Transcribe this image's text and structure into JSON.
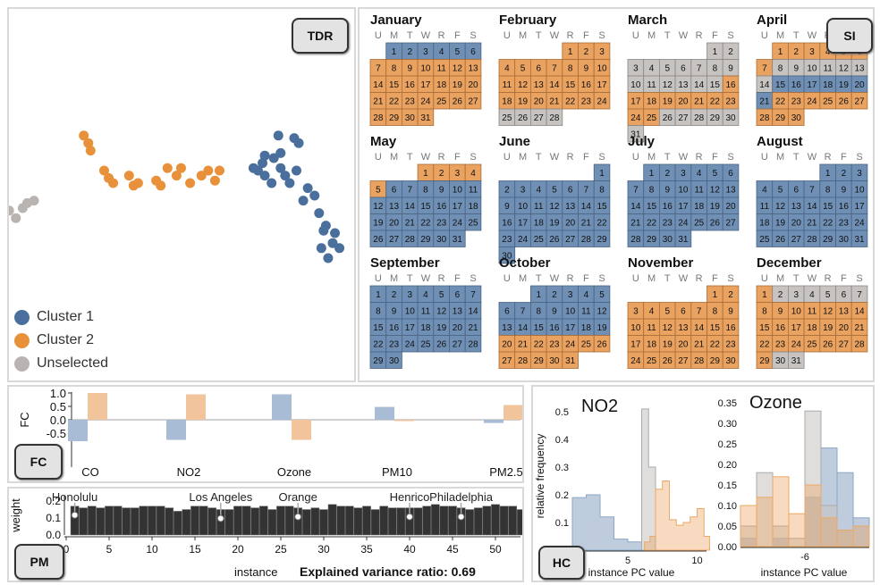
{
  "colors": {
    "cluster1": "#5b7fa9",
    "cluster2": "#e8a063",
    "unselected": "#c8c4c2",
    "bar": "#333333"
  },
  "tdr": {
    "badge": "TDR",
    "legend": [
      {
        "label": "Cluster 1",
        "color": "#4a6f9c"
      },
      {
        "label": "Cluster 2",
        "color": "#e8913a"
      },
      {
        "label": "Unselected",
        "color": "#b9b4b1"
      }
    ]
  },
  "si": {
    "badge": "SI",
    "weekdays": [
      "U",
      "M",
      "T",
      "W",
      "R",
      "F",
      "S"
    ],
    "months": [
      {
        "name": "January",
        "start": 1,
        "days": 31,
        "colors": "BBBBBBOOOOOOOOOOOOOOOOOOOOOOOOO"
      },
      {
        "name": "February",
        "start": 4,
        "days": 28,
        "colors": "OOOOOOOOOOOOOOOOOOOOOOOOGGGG"
      },
      {
        "name": "March",
        "start": 5,
        "days": 31,
        "colors": "GGGGGGGGGGGGGGGOOOOOOOOOOGGGGGG"
      },
      {
        "name": "April",
        "start": 1,
        "days": 30,
        "colors": "OOOOOOOGGGGGGGBBBBBBBOOOOOOOOO"
      },
      {
        "name": "May",
        "start": 3,
        "days": 31,
        "colors": "OOOOOBBBBBBBBBBBBBBBBBBBBBBBBBB"
      },
      {
        "name": "June",
        "start": 6,
        "days": 30,
        "colors": "BBBBBBBBBBBBBBBBBBBBBBBBBBBBBB"
      },
      {
        "name": "July",
        "start": 1,
        "days": 31,
        "colors": "BBBBBBBBBBBBBBBBBBBBBBBBBBBBBBB"
      },
      {
        "name": "August",
        "start": 4,
        "days": 31,
        "colors": "BBBBBBBBBBBBBBBBBBBBBBBBBBBBBBB"
      },
      {
        "name": "September",
        "start": 0,
        "days": 30,
        "colors": "BBBBBBBBBBBBBBBBBBBBBBBBBBBBBB"
      },
      {
        "name": "October",
        "start": 2,
        "days": 31,
        "colors": "BBBBBBBBBBBBBBBBBBBOOOOOOOOOOOO"
      },
      {
        "name": "November",
        "start": 5,
        "days": 30,
        "colors": "OOOOOOOOOOOOOOOOOOOOOOOOOOOOOO"
      },
      {
        "name": "December",
        "start": 0,
        "days": 31,
        "colors": "OGGGGGGOOOOOOOOOOOOOOOOOOOOOOGG"
      }
    ]
  },
  "fc": {
    "badge": "FC",
    "ylabel": "FC",
    "yticks": [
      "1.0",
      "0.5",
      "0.0",
      "-0.5"
    ],
    "ylim": [
      -1,
      1
    ],
    "categories": [
      "CO",
      "NO2",
      "Ozone",
      "PM10",
      "PM2.5"
    ]
  },
  "pm": {
    "badge": "PM",
    "ylabel": "weight",
    "xlabel": "instance",
    "ratio": "Explained variance ratio: 0.69",
    "yticks": [
      "0.2",
      "0.1",
      "0.0"
    ],
    "xticks": [
      "0",
      "5",
      "10",
      "15",
      "20",
      "25",
      "30",
      "35",
      "40",
      "45",
      "50"
    ],
    "annotations": [
      {
        "text": "Honolulu",
        "index": 1
      },
      {
        "text": "Los Angeles",
        "index": 18
      },
      {
        "text": "Orange",
        "index": 27
      },
      {
        "text": "Henrico",
        "index": 40
      },
      {
        "text": "Philadelphia",
        "index": 46
      }
    ]
  },
  "hc": {
    "badge": "HC",
    "ylabel": "relative frequency",
    "xlabel": "instance PC value",
    "no2": {
      "title": "NO2",
      "yticks": [
        "0.5",
        "0.4",
        "0.3",
        "0.2",
        "0.1",
        "0.0"
      ],
      "xticks": [
        "5",
        "10"
      ]
    },
    "ozone": {
      "title": "Ozone",
      "yticks": [
        "0.35",
        "0.30",
        "0.25",
        "0.20",
        "0.15",
        "0.10",
        "0.05",
        "0.00"
      ],
      "xticks": [
        "-6"
      ]
    }
  },
  "chart_data": [
    {
      "type": "scatter",
      "series": [
        {
          "name": "Cluster 1",
          "x": [
            4.2,
            4.9,
            5.1,
            4.3,
            4.0,
            3.6,
            3.5,
            3.3,
            3.1,
            3.6,
            4.3,
            4.5,
            5.0,
            4.7,
            3.9,
            5.5,
            5.8,
            5.3,
            6.0,
            6.3,
            6.7,
            6.2,
            6.6,
            6.1,
            6.9,
            6.4
          ],
          "y": [
            6.9,
            6.8,
            6.6,
            6.2,
            6.0,
            6.1,
            5.8,
            5.5,
            5.6,
            5.3,
            5.6,
            5.3,
            5.5,
            5.0,
            5.0,
            4.8,
            4.5,
            4.3,
            3.8,
            3.3,
            3.0,
            3.1,
            2.6,
            2.4,
            2.4,
            2.0
          ]
        },
        {
          "name": "Cluster 2",
          "x": [
            -4.4,
            -4.2,
            -4.1,
            -3.5,
            -3.3,
            -3.1,
            -2.4,
            -2.2,
            -2.0,
            -1.2,
            -1.0,
            -0.7,
            -0.3,
            -0.1,
            0.3,
            0.8,
            1.1,
            1.4,
            1.6
          ],
          "y": [
            6.9,
            6.6,
            6.3,
            5.5,
            5.2,
            5.0,
            5.3,
            4.9,
            5.0,
            5.1,
            4.9,
            5.6,
            5.3,
            5.6,
            5.0,
            5.3,
            5.5,
            5.1,
            5.5
          ]
        },
        {
          "name": "Unselected",
          "x": [
            -8.3,
            -8.0,
            -7.7,
            -7.4,
            -7.1,
            -6.9,
            -6.6
          ],
          "y": [
            3.5,
            3.7,
            3.9,
            3.6,
            4.0,
            4.2,
            4.3
          ]
        }
      ]
    },
    {
      "type": "bar",
      "categories": [
        "CO",
        "NO2",
        "Ozone",
        "PM10",
        "PM2.5"
      ],
      "series": [
        {
          "name": "Cluster 1",
          "values": [
            -0.8,
            -0.75,
            0.95,
            0.48,
            -0.12
          ]
        },
        {
          "name": "Cluster 2",
          "values": [
            1.0,
            0.95,
            -0.75,
            -0.05,
            0.55
          ]
        }
      ]
    },
    {
      "type": "bar",
      "x": [
        1,
        2,
        3,
        4,
        5,
        6,
        7,
        8,
        9,
        10,
        11,
        12,
        13,
        14,
        15,
        16,
        17,
        18,
        19,
        20,
        21,
        22,
        23,
        24,
        25,
        26,
        27,
        28,
        29,
        30,
        31,
        32,
        33,
        34,
        35,
        36,
        37,
        38,
        39,
        40,
        41,
        42,
        43,
        44,
        45,
        46,
        47,
        48,
        49,
        50,
        51,
        52,
        53,
        54
      ],
      "values": [
        0.17,
        0.16,
        0.17,
        0.16,
        0.17,
        0.17,
        0.16,
        0.16,
        0.17,
        0.17,
        0.17,
        0.16,
        0.14,
        0.15,
        0.17,
        0.17,
        0.16,
        0.15,
        0.15,
        0.17,
        0.17,
        0.16,
        0.17,
        0.15,
        0.17,
        0.17,
        0.16,
        0.15,
        0.16,
        0.15,
        0.18,
        0.17,
        0.17,
        0.16,
        0.17,
        0.15,
        0.17,
        0.16,
        0.16,
        0.16,
        0.16,
        0.17,
        0.18,
        0.17,
        0.17,
        0.16,
        0.15,
        0.16,
        0.17,
        0.18,
        0.17,
        0.17,
        0.15,
        0.17
      ]
    },
    {
      "type": "area",
      "title": "NO2",
      "series": [
        {
          "name": "Cluster 1",
          "x": [
            1,
            2,
            3,
            4,
            5,
            6
          ],
          "values": [
            0.19,
            0.2,
            0.12,
            0.04,
            0.03,
            0.0
          ]
        },
        {
          "name": "Cluster 2",
          "x": [
            6.2,
            6.6,
            7,
            7.5,
            8,
            8.5,
            9,
            9.5,
            10,
            10.5
          ],
          "values": [
            0.03,
            0.05,
            0.22,
            0.25,
            0.11,
            0.09,
            0.1,
            0.12,
            0.15,
            0.05
          ]
        },
        {
          "name": "Unselected",
          "x": [
            6,
            6.5
          ],
          "values": [
            0.51,
            0.3
          ]
        }
      ]
    },
    {
      "type": "area",
      "title": "Ozone",
      "series": [
        {
          "name": "Cluster 1",
          "values": [
            0.02,
            0.0,
            0.02,
            0.0,
            0.12,
            0.24,
            0.18,
            0.07
          ]
        },
        {
          "name": "Cluster 2",
          "values": [
            0.1,
            0.12,
            0.17,
            0.08,
            0.15,
            0.07,
            0.04,
            0.05
          ]
        },
        {
          "name": "Unselected",
          "values": [
            0.05,
            0.18,
            0.05,
            0.02,
            0.33,
            0.1,
            0.04,
            0.0
          ]
        }
      ]
    }
  ]
}
